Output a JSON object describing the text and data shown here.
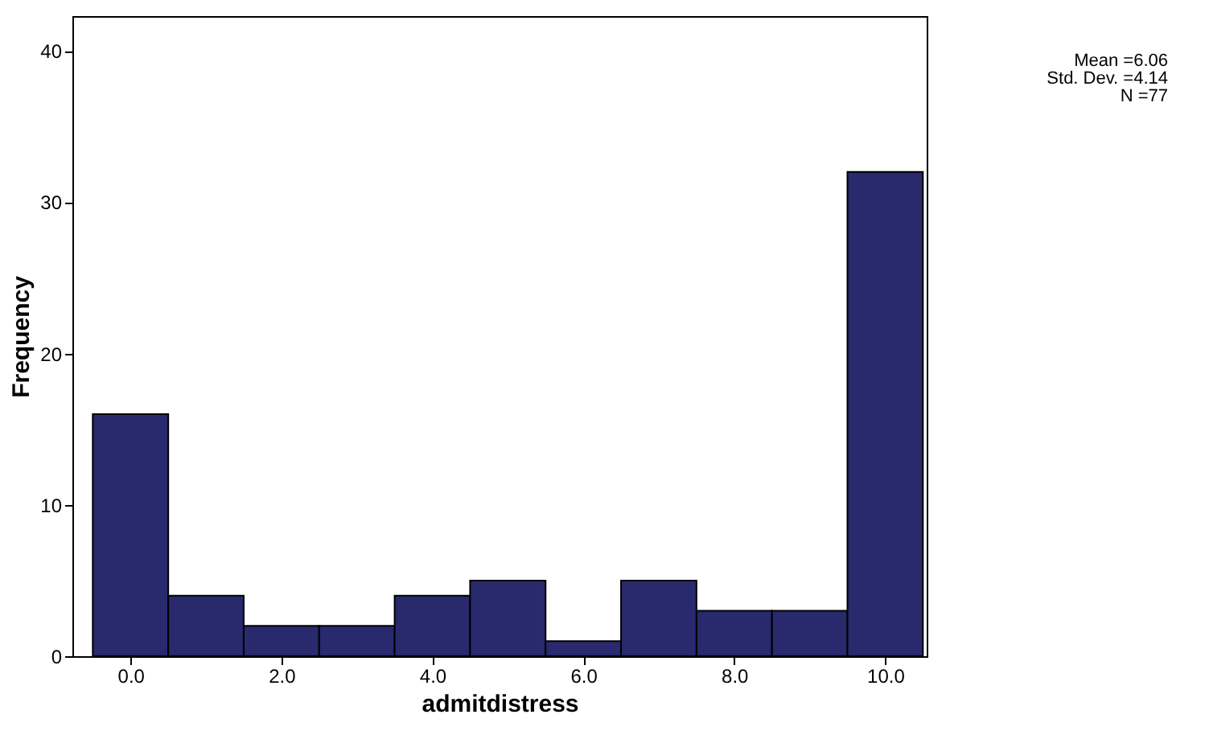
{
  "chart_data": {
    "type": "histogram",
    "xlabel": "admitdistress",
    "ylabel": "Frequency",
    "bins": [
      -0.5,
      0.5,
      1.5,
      2.5,
      3.5,
      4.5,
      5.5,
      6.5,
      7.5,
      8.5,
      9.5,
      10.5
    ],
    "values": [
      16,
      4,
      2,
      2,
      4,
      5,
      1,
      5,
      3,
      3,
      32
    ],
    "color": "#29296e",
    "xlim": [
      -0.77,
      10.55
    ],
    "xticks": [
      {
        "value": 0,
        "label": "0.0"
      },
      {
        "value": 2,
        "label": "2.0"
      },
      {
        "value": 4,
        "label": "4.0"
      },
      {
        "value": 6,
        "label": "6.0"
      },
      {
        "value": 8,
        "label": "8.0"
      },
      {
        "value": 10,
        "label": "10.0"
      }
    ],
    "ylim": [
      0,
      42.3
    ],
    "yticks": [
      0,
      10,
      20,
      30,
      40
    ],
    "grid": false,
    "annotations": [
      "Mean =6.06",
      "Std. Dev. =4.14",
      "N =77"
    ]
  }
}
